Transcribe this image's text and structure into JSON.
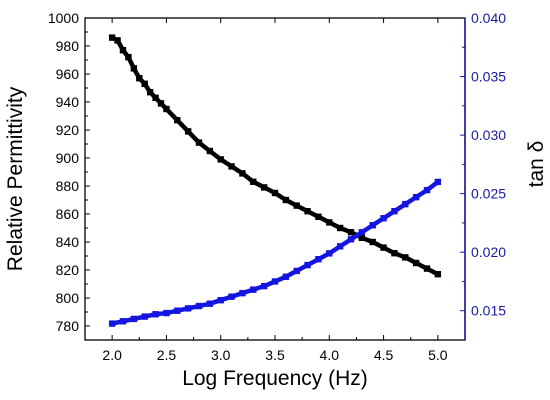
{
  "chart_data": {
    "type": "scatter",
    "xlabel": "Log Frequency (Hz)",
    "ylabel_left": "Relative Permittivity",
    "ylabel_right": "tan δ",
    "xlim": [
      1.75,
      5.25
    ],
    "ylim_left": [
      770,
      1000
    ],
    "ylim_right": [
      0.0125,
      0.04
    ],
    "x_ticks": [
      2.0,
      2.5,
      3.0,
      3.5,
      4.0,
      4.5,
      5.0
    ],
    "x_tick_labels": [
      "2.0",
      "2.5",
      "3.0",
      "3.5",
      "4.0",
      "4.5",
      "5.0"
    ],
    "y_left_ticks": [
      780,
      800,
      820,
      840,
      860,
      880,
      900,
      920,
      940,
      960,
      980,
      1000
    ],
    "y_left_tick_labels": [
      "780",
      "800",
      "820",
      "840",
      "860",
      "880",
      "900",
      "920",
      "940",
      "960",
      "980",
      "1000"
    ],
    "y_right_ticks": [
      0.015,
      0.02,
      0.025,
      0.03,
      0.035,
      0.04
    ],
    "y_right_tick_labels": [
      "0.015",
      "0.020",
      "0.025",
      "0.030",
      "0.035",
      "0.040"
    ],
    "colors": {
      "left_axis": "#000000",
      "right_axis": "#1a1aa0",
      "permittivity": "#000000",
      "tan_delta": "#1515e0"
    },
    "series": [
      {
        "axis": "left",
        "marker": "square",
        "x": [
          2.0,
          2.05,
          2.1,
          2.15,
          2.2,
          2.25,
          2.3,
          2.35,
          2.4,
          2.45,
          2.5,
          2.6,
          2.7,
          2.8,
          2.9,
          3.0,
          3.1,
          3.2,
          3.3,
          3.4,
          3.5,
          3.6,
          3.7,
          3.8,
          3.9,
          4.0,
          4.1,
          4.2,
          4.3,
          4.4,
          4.5,
          4.6,
          4.7,
          4.8,
          4.9,
          5.0
        ],
        "values": [
          986,
          984,
          977,
          972,
          964,
          957,
          953,
          947,
          943,
          939,
          935,
          927,
          919,
          911,
          905,
          899,
          894,
          889,
          883,
          879,
          875,
          870,
          866,
          862,
          858,
          854,
          850,
          847,
          843,
          840,
          836,
          832,
          829,
          825,
          821,
          817
        ]
      },
      {
        "axis": "right",
        "marker": "square",
        "x": [
          2.0,
          2.1,
          2.2,
          2.3,
          2.4,
          2.5,
          2.6,
          2.7,
          2.8,
          2.9,
          3.0,
          3.1,
          3.2,
          3.3,
          3.4,
          3.5,
          3.6,
          3.7,
          3.8,
          3.9,
          4.0,
          4.1,
          4.2,
          4.3,
          4.4,
          4.5,
          4.6,
          4.7,
          4.8,
          4.9,
          5.0
        ],
        "values": [
          0.0139,
          0.0141,
          0.0143,
          0.0145,
          0.0147,
          0.0148,
          0.015,
          0.0152,
          0.0154,
          0.0156,
          0.0159,
          0.0162,
          0.0165,
          0.0168,
          0.0171,
          0.0175,
          0.0179,
          0.0184,
          0.0189,
          0.0194,
          0.0199,
          0.0205,
          0.0211,
          0.0217,
          0.0223,
          0.0229,
          0.0235,
          0.0241,
          0.0247,
          0.0253,
          0.026
        ]
      }
    ]
  }
}
